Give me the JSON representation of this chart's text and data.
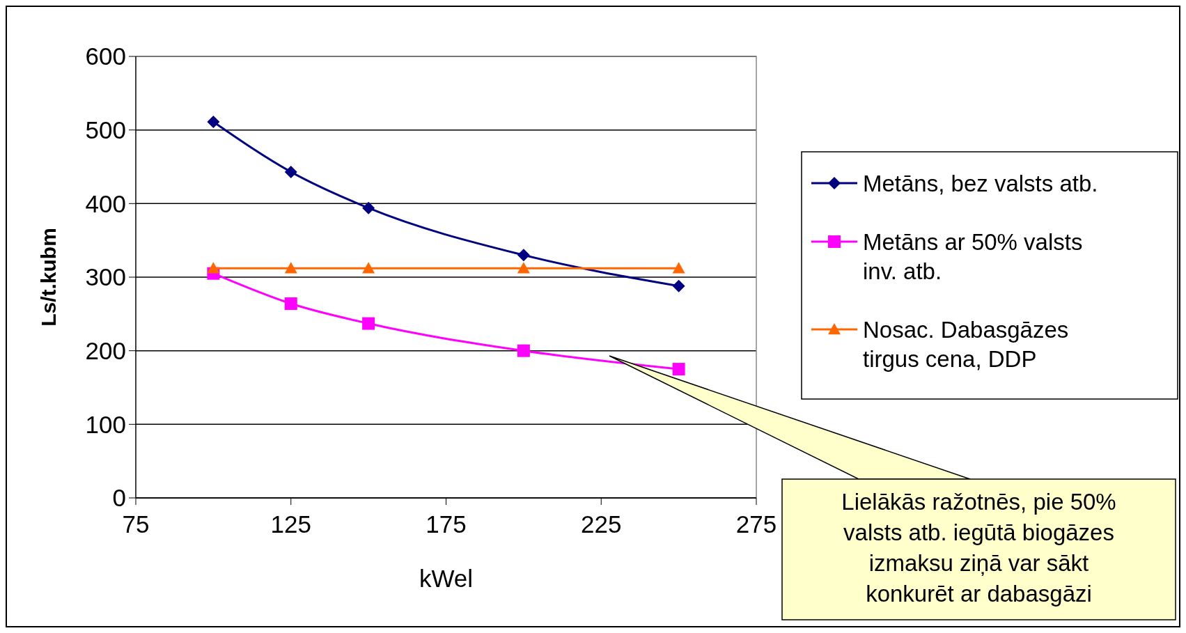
{
  "chart_data": {
    "type": "line",
    "xlabel": "kWel",
    "ylabel": "Ls/t.kubm",
    "x": [
      100,
      125,
      150,
      200,
      250
    ],
    "series": [
      {
        "name": "Metāns, bez valsts atb.",
        "color": "#000080",
        "marker": "diamond",
        "values": [
          511,
          443,
          394,
          330,
          288
        ]
      },
      {
        "name": "Metāns ar 50% valsts inv. atb.",
        "color": "#ff00ff",
        "marker": "square",
        "values": [
          305,
          264,
          237,
          200,
          175
        ]
      },
      {
        "name": "Nosac. Dabasgāzes tirgus cena, DDP",
        "color": "#ff6600",
        "marker": "triangle",
        "values": [
          312,
          312,
          312,
          312,
          312
        ]
      }
    ],
    "xlim": [
      75,
      275
    ],
    "xticks": [
      75,
      125,
      175,
      225,
      275
    ],
    "ylim": [
      0,
      600
    ],
    "yticks": [
      0,
      100,
      200,
      300,
      400,
      500,
      600
    ],
    "grid": "y",
    "legend": "right",
    "annotations": [
      "Lielākās ražotnēs, pie 50% valsts atb. iegūtā  biogāzes izmaksu ziņā var sākt konkurēt ar dabasgāzi"
    ]
  }
}
